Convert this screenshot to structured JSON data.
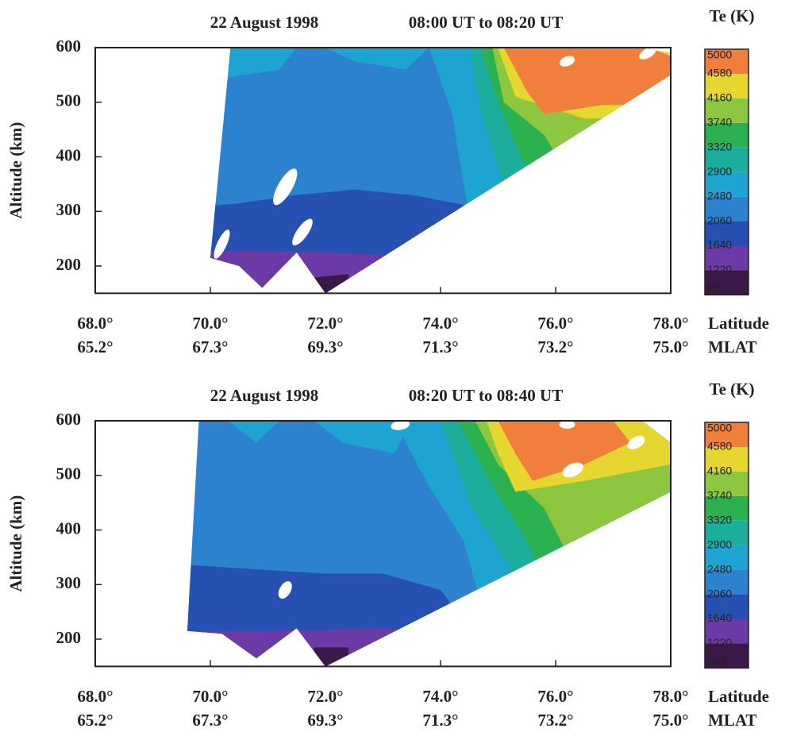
{
  "chart_data": [
    {
      "type": "contour",
      "title": "22 August 1998",
      "subtitle": "08:00 UT to 08:20 UT",
      "ylabel": "Altitude (km)",
      "xlabel": "Latitude",
      "x2label": "MLAT",
      "xlim": [
        68,
        78
      ],
      "xticks": [
        {
          "value": 68,
          "label": "68.0°"
        },
        {
          "value": 70,
          "label": "70.0°"
        },
        {
          "value": 72,
          "label": "72.0°"
        },
        {
          "value": 74,
          "label": "74.0°"
        },
        {
          "value": 76,
          "label": "76.0°"
        },
        {
          "value": 78,
          "label": "78.0°"
        }
      ],
      "x2ticks": [
        {
          "value": 65.2,
          "label": "65.2°"
        },
        {
          "value": 67.3,
          "label": "67.3°"
        },
        {
          "value": 69.3,
          "label": "69.3°"
        },
        {
          "value": 71.3,
          "label": "71.3°"
        },
        {
          "value": 73.2,
          "label": "73.2°"
        },
        {
          "value": 75,
          "label": "75.0°"
        }
      ],
      "ylim": [
        150,
        600
      ],
      "yticks": [
        200,
        300,
        400,
        500,
        600
      ],
      "colorbar_label": "Te (K)",
      "levels": [
        800,
        1220,
        1640,
        2060,
        2480,
        2900,
        3320,
        3740,
        4160,
        4580,
        5000
      ],
      "colors": [
        "#3a1848",
        "#6b3aa6",
        "#2650b2",
        "#2c82cf",
        "#1ea4d0",
        "#1bae9c",
        "#2bb150",
        "#8dc63f",
        "#e6d630",
        "#f07f3c"
      ]
    },
    {
      "type": "contour",
      "title": "22 August 1998",
      "subtitle": "08:20 UT to 08:40 UT",
      "ylabel": "Altitude (km)",
      "xlabel": "Latitude",
      "x2label": "MLAT",
      "xlim": [
        68,
        78
      ],
      "xticks": [
        {
          "value": 68,
          "label": "68.0°"
        },
        {
          "value": 70,
          "label": "70.0°"
        },
        {
          "value": 72,
          "label": "72.0°"
        },
        {
          "value": 74,
          "label": "74.0°"
        },
        {
          "value": 76,
          "label": "76.0°"
        },
        {
          "value": 78,
          "label": "78.0°"
        }
      ],
      "x2ticks": [
        {
          "value": 65.2,
          "label": "65.2°"
        },
        {
          "value": 67.3,
          "label": "67.3°"
        },
        {
          "value": 69.3,
          "label": "69.3°"
        },
        {
          "value": 71.3,
          "label": "71.3°"
        },
        {
          "value": 73.2,
          "label": "73.2°"
        },
        {
          "value": 75,
          "label": "75.0°"
        }
      ],
      "ylim": [
        150,
        600
      ],
      "yticks": [
        200,
        300,
        400,
        500,
        600
      ],
      "colorbar_label": "Te (K)",
      "levels": [
        800,
        1220,
        1640,
        2060,
        2480,
        2900,
        3320,
        3740,
        4160,
        4580,
        5000
      ],
      "colors": [
        "#3a1848",
        "#6b3aa6",
        "#2650b2",
        "#2c82cf",
        "#1ea4d0",
        "#1bae9c",
        "#2bb150",
        "#8dc63f",
        "#e6d630",
        "#f07f3c"
      ]
    }
  ]
}
